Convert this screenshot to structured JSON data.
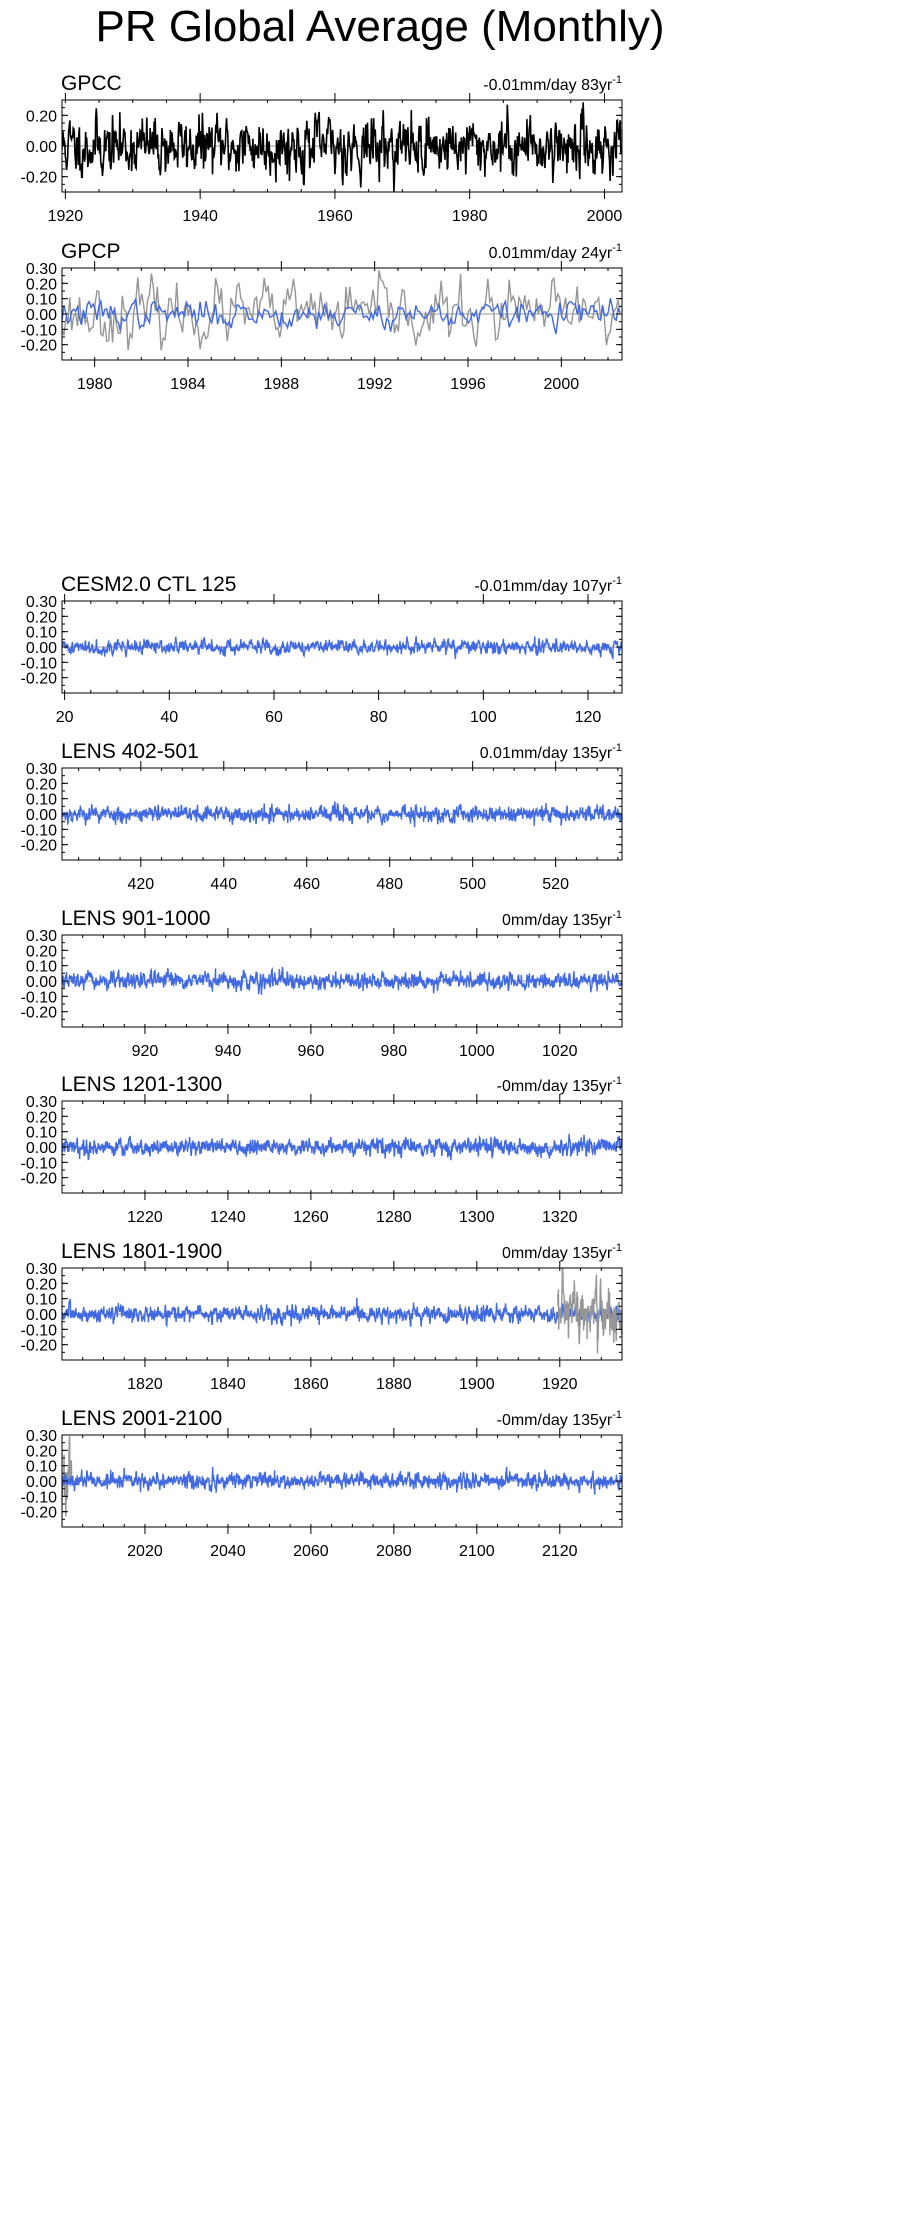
{
  "title": "PR Global Average (Monthly)",
  "colors": {
    "obs": "#000000",
    "model": "#4169e1",
    "overlay": "#969696",
    "zero": "#9a9a9a"
  },
  "chart_data": [
    {
      "type": "line",
      "panel_label": "GPCC",
      "trend_value": "-0.01mm/day 83yr",
      "trend_exp": "-1",
      "xlim": [
        1919.5,
        2002.6
      ],
      "ylim": [
        -0.3,
        0.3
      ],
      "yticks": [
        "0.20",
        "0.00",
        "-0.20"
      ],
      "ytick_values": [
        0.2,
        0.0,
        -0.2
      ],
      "xticks": [
        "1920",
        "1940",
        "1960",
        "1980",
        "2000"
      ],
      "xtick_values": [
        1920,
        1940,
        1960,
        1980,
        2000
      ],
      "series": [
        {
          "role": "obs",
          "amplitude": 0.085,
          "seed": 11
        }
      ]
    },
    {
      "type": "line",
      "panel_label": "GPCP",
      "trend_value": "0.01mm/day 24yr",
      "trend_exp": "-1",
      "xlim": [
        1978.6,
        2002.6
      ],
      "ylim": [
        -0.3,
        0.3
      ],
      "yticks": [
        "0.30",
        "0.20",
        "0.10",
        "0.00",
        "-0.10",
        "-0.20"
      ],
      "ytick_values": [
        0.3,
        0.2,
        0.1,
        0.0,
        -0.1,
        -0.2
      ],
      "xticks": [
        "1980",
        "1984",
        "1988",
        "1992",
        "1996",
        "2000"
      ],
      "xtick_values": [
        1980,
        1984,
        1988,
        1992,
        1996,
        2000
      ],
      "series": [
        {
          "role": "overlay",
          "amplitude": 0.09,
          "seed": 23
        },
        {
          "role": "model",
          "amplitude": 0.04,
          "seed": 37
        }
      ]
    },
    {
      "type": "line",
      "panel_label": "CESM2.0 CTL 125",
      "trend_value": "-0.01mm/day 107yr",
      "trend_exp": "-1",
      "xlim": [
        19.5,
        126.5
      ],
      "ylim": [
        -0.3,
        0.3
      ],
      "yticks": [
        "0.30",
        "0.20",
        "0.10",
        "0.00",
        "-0.10",
        "-0.20"
      ],
      "ytick_values": [
        0.3,
        0.2,
        0.1,
        0.0,
        -0.1,
        -0.2
      ],
      "xticks": [
        "20",
        "40",
        "60",
        "80",
        "100",
        "120"
      ],
      "xtick_values": [
        20,
        40,
        60,
        80,
        100,
        120
      ],
      "series": [
        {
          "role": "model",
          "amplitude": 0.022,
          "seed": 41
        }
      ]
    },
    {
      "type": "line",
      "panel_label": "LENS 402-501",
      "trend_value": "0.01mm/day 135yr",
      "trend_exp": "-1",
      "xlim": [
        401,
        536
      ],
      "ylim": [
        -0.3,
        0.3
      ],
      "yticks": [
        "0.30",
        "0.20",
        "0.10",
        "0.00",
        "-0.10",
        "-0.20"
      ],
      "ytick_values": [
        0.3,
        0.2,
        0.1,
        0.0,
        -0.1,
        -0.2
      ],
      "xticks": [
        "420",
        "440",
        "460",
        "480",
        "500",
        "520"
      ],
      "xtick_values": [
        420,
        440,
        460,
        480,
        500,
        520
      ],
      "series": [
        {
          "role": "model",
          "amplitude": 0.024,
          "seed": 53
        }
      ]
    },
    {
      "type": "line",
      "panel_label": "LENS 901-1000",
      "trend_value": "0mm/day 135yr",
      "trend_exp": "-1",
      "xlim": [
        900,
        1035
      ],
      "ylim": [
        -0.3,
        0.3
      ],
      "yticks": [
        "0.30",
        "0.20",
        "0.10",
        "0.00",
        "-0.10",
        "-0.20"
      ],
      "ytick_values": [
        0.3,
        0.2,
        0.1,
        0.0,
        -0.1,
        -0.2
      ],
      "xticks": [
        "920",
        "940",
        "960",
        "980",
        "1000",
        "1020"
      ],
      "xtick_values": [
        920,
        940,
        960,
        980,
        1000,
        1020
      ],
      "series": [
        {
          "role": "model",
          "amplitude": 0.024,
          "seed": 67
        }
      ]
    },
    {
      "type": "line",
      "panel_label": "LENS 1201-1300",
      "trend_value": "-0mm/day 135yr",
      "trend_exp": "-1",
      "xlim": [
        1200,
        1335
      ],
      "ylim": [
        -0.3,
        0.3
      ],
      "yticks": [
        "0.30",
        "0.20",
        "0.10",
        "0.00",
        "-0.10",
        "-0.20"
      ],
      "ytick_values": [
        0.3,
        0.2,
        0.1,
        0.0,
        -0.1,
        -0.2
      ],
      "xticks": [
        "1220",
        "1240",
        "1260",
        "1280",
        "1300",
        "1320"
      ],
      "xtick_values": [
        1220,
        1240,
        1260,
        1280,
        1300,
        1320
      ],
      "series": [
        {
          "role": "model",
          "amplitude": 0.024,
          "seed": 79
        }
      ]
    },
    {
      "type": "line",
      "panel_label": "LENS 1801-1900",
      "trend_value": "0mm/day 135yr",
      "trend_exp": "-1",
      "xlim": [
        1800,
        1935
      ],
      "ylim": [
        -0.3,
        0.3
      ],
      "yticks": [
        "0.30",
        "0.20",
        "0.10",
        "0.00",
        "-0.10",
        "-0.20"
      ],
      "ytick_values": [
        0.3,
        0.2,
        0.1,
        0.0,
        -0.1,
        -0.2
      ],
      "xticks": [
        "1820",
        "1840",
        "1860",
        "1880",
        "1900",
        "1920"
      ],
      "xtick_values": [
        1820,
        1840,
        1860,
        1880,
        1900,
        1920
      ],
      "series": [
        {
          "role": "model",
          "amplitude": 0.024,
          "seed": 83
        },
        {
          "role": "overlay",
          "amplitude": 0.09,
          "seed": 97,
          "xrange": [
            1919.5,
            1935
          ]
        }
      ]
    },
    {
      "type": "line",
      "panel_label": "LENS 2001-2100",
      "trend_value": "-0mm/day 135yr",
      "trend_exp": "-1",
      "xlim": [
        2000,
        2135
      ],
      "ylim": [
        -0.3,
        0.3
      ],
      "yticks": [
        "0.30",
        "0.20",
        "0.10",
        "0.00",
        "-0.10",
        "-0.20"
      ],
      "ytick_values": [
        0.3,
        0.2,
        0.1,
        0.0,
        -0.1,
        -0.2
      ],
      "xticks": [
        "2020",
        "2040",
        "2060",
        "2080",
        "2100",
        "2120"
      ],
      "xtick_values": [
        2020,
        2040,
        2060,
        2080,
        2100,
        2120
      ],
      "series": [
        {
          "role": "overlay",
          "amplitude": 0.09,
          "seed": 101,
          "xrange": [
            2000,
            2002.6
          ]
        },
        {
          "role": "model",
          "amplitude": 0.024,
          "seed": 107
        }
      ]
    }
  ]
}
